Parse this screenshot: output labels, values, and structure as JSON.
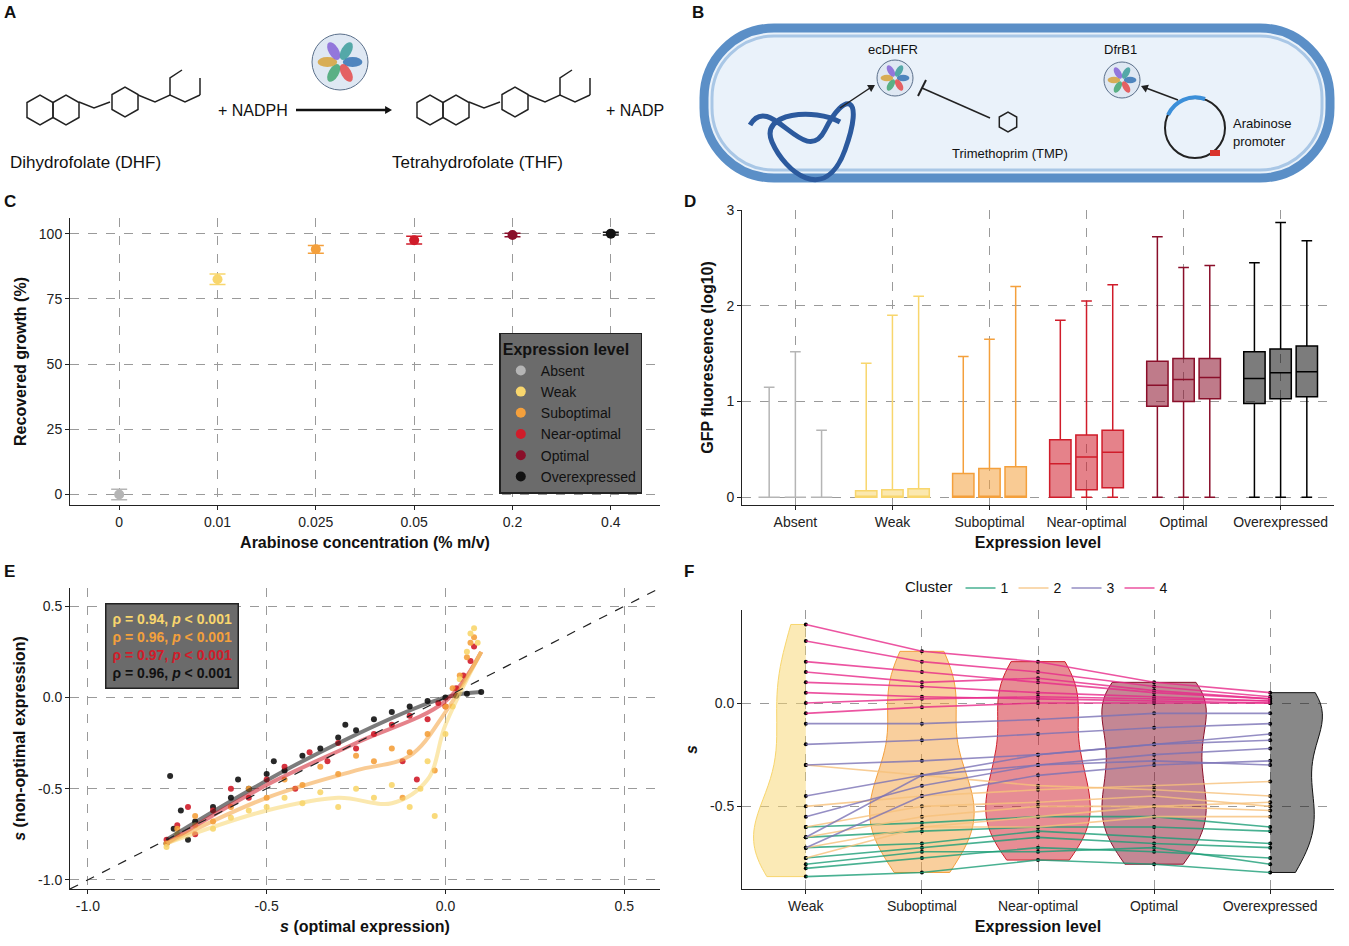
{
  "diagrams": [
    {
      "panel": "A",
      "type": "reaction",
      "substrate": "Dihydrofolate (DHF)",
      "cofactor": "+ NADPH",
      "product": "Tetrahydrofolate (THF)",
      "cofactor_product": "+ NADP"
    },
    {
      "panel": "B",
      "type": "cell",
      "host_enzyme": "ecDHFR",
      "enzyme": "DfrB1",
      "drug": "Trimethoprim (TMP)",
      "promoter": "Arabinose promoter"
    }
  ],
  "chart_data": [
    {
      "panel": "C",
      "type": "scatter",
      "x_label": "Arabinose concentration (% m/v)",
      "y_label": "Recovered growth (%)",
      "categories": [
        "0",
        "0.01",
        "0.025",
        "0.05",
        "0.2",
        "0.4"
      ],
      "ylim": [
        -4,
        106
      ],
      "yticks": [
        0,
        25,
        50,
        75,
        100
      ],
      "grid": true,
      "legend": "bottom right",
      "legend_title": "Expression level",
      "series": [
        {
          "name": "Absent",
          "color": "#b5b5b5",
          "values": [
            0,
            null,
            null,
            null,
            null,
            null
          ],
          "errors": [
            2,
            null,
            null,
            null,
            null,
            null
          ]
        },
        {
          "name": "Weak",
          "color": "#f8d66d",
          "values": [
            null,
            82.5,
            null,
            null,
            null,
            null
          ],
          "errors": [
            null,
            2,
            null,
            null,
            null,
            null
          ]
        },
        {
          "name": "Suboptimal",
          "color": "#f4a03c",
          "values": [
            null,
            null,
            94,
            null,
            null,
            null
          ],
          "errors": [
            null,
            null,
            1.5,
            null,
            null,
            null
          ]
        },
        {
          "name": "Near-optimal",
          "color": "#d01c2a",
          "values": [
            null,
            null,
            null,
            97.5,
            null,
            null
          ],
          "errors": [
            null,
            null,
            null,
            1.5,
            null,
            null
          ]
        },
        {
          "name": "Optimal",
          "color": "#8a0f2a",
          "values": [
            null,
            null,
            null,
            null,
            99.5,
            null
          ],
          "errors": [
            null,
            null,
            null,
            null,
            0.7,
            null
          ]
        },
        {
          "name": "Overexpressed",
          "color": "#111111",
          "values": [
            null,
            null,
            null,
            null,
            null,
            100
          ],
          "errors": [
            null,
            null,
            null,
            null,
            null,
            0.5
          ]
        }
      ]
    },
    {
      "panel": "D",
      "type": "box",
      "x_label": "Expression level",
      "y_label": "GFP fluorescence (log10)",
      "categories": [
        "Absent",
        "Weak",
        "Suboptimal",
        "Near-optimal",
        "Optimal",
        "Overexpressed"
      ],
      "ylim": [
        -0.08,
        3
      ],
      "yticks": [
        0,
        1,
        2,
        3
      ],
      "grid": true,
      "series": [
        {
          "name": "Absent",
          "color": "#b5b5b5",
          "replicates": [
            {
              "min": 0,
              "q1": 0,
              "median": 0,
              "q3": 0,
              "max": 1.15
            },
            {
              "min": 0,
              "q1": 0,
              "median": 0,
              "q3": 0,
              "max": 1.52
            },
            {
              "min": 0,
              "q1": 0,
              "median": 0,
              "q3": 0,
              "max": 0.7
            }
          ]
        },
        {
          "name": "Weak",
          "color": "#f8d66d",
          "replicates": [
            {
              "min": 0,
              "q1": 0,
              "median": 0,
              "q3": 0.07,
              "max": 1.4
            },
            {
              "min": 0,
              "q1": 0,
              "median": 0,
              "q3": 0.08,
              "max": 1.9
            },
            {
              "min": 0,
              "q1": 0,
              "median": 0,
              "q3": 0.09,
              "max": 2.1
            }
          ]
        },
        {
          "name": "Suboptimal",
          "color": "#f4a03c",
          "replicates": [
            {
              "min": 0,
              "q1": 0,
              "median": 0,
              "q3": 0.25,
              "max": 1.47
            },
            {
              "min": 0,
              "q1": 0,
              "median": 0,
              "q3": 0.3,
              "max": 1.65
            },
            {
              "min": 0,
              "q1": 0,
              "median": 0,
              "q3": 0.32,
              "max": 2.2
            }
          ]
        },
        {
          "name": "Near-optimal",
          "color": "#d01c2a",
          "replicates": [
            {
              "min": 0,
              "q1": 0,
              "median": 0.35,
              "q3": 0.6,
              "max": 1.85
            },
            {
              "min": 0,
              "q1": 0.08,
              "median": 0.42,
              "q3": 0.65,
              "max": 2.05
            },
            {
              "min": 0,
              "q1": 0.1,
              "median": 0.47,
              "q3": 0.7,
              "max": 2.22
            }
          ]
        },
        {
          "name": "Optimal",
          "color": "#8a0f2a",
          "replicates": [
            {
              "min": 0,
              "q1": 0.95,
              "median": 1.17,
              "q3": 1.42,
              "max": 2.72
            },
            {
              "min": 0,
              "q1": 1.0,
              "median": 1.23,
              "q3": 1.45,
              "max": 2.4
            },
            {
              "min": 0,
              "q1": 1.03,
              "median": 1.25,
              "q3": 1.45,
              "max": 2.42
            }
          ]
        },
        {
          "name": "Overexpressed",
          "color": "#111111",
          "replicates": [
            {
              "min": 0,
              "q1": 0.98,
              "median": 1.24,
              "q3": 1.52,
              "max": 2.45
            },
            {
              "min": 0,
              "q1": 1.03,
              "median": 1.3,
              "q3": 1.55,
              "max": 2.87
            },
            {
              "min": 0,
              "q1": 1.05,
              "median": 1.31,
              "q3": 1.58,
              "max": 2.68
            }
          ]
        }
      ]
    },
    {
      "panel": "E",
      "type": "scatter",
      "x_label": "s (optimal expression)",
      "y_label": "s (non-optimal expression)",
      "xlim": [
        -1.05,
        0.6
      ],
      "ylim": [
        -1.05,
        0.6
      ],
      "xticks": [
        {
          "value": -1,
          "label": "-1.0"
        },
        {
          "value": -0.5,
          "label": "-0.5"
        },
        {
          "value": 0,
          "label": "0.0"
        },
        {
          "value": 0.5,
          "label": "0.5"
        }
      ],
      "yticks": [
        {
          "value": -1,
          "label": "-1.0"
        },
        {
          "value": -0.5,
          "label": "-0.5"
        },
        {
          "value": 0,
          "label": "0.0"
        },
        {
          "value": 0.5,
          "label": "0.5"
        }
      ],
      "grid": true,
      "series": [
        {
          "color": "#f8d66d",
          "annotation": "ρ = 0.94, p < 0.001",
          "x": [
            -0.78,
            -0.75,
            -0.7,
            -0.65,
            -0.6,
            -0.55,
            -0.5,
            -0.45,
            -0.4,
            -0.35,
            -0.3,
            -0.25,
            -0.2,
            -0.15,
            -0.1,
            -0.07,
            -0.05,
            -0.03,
            0,
            0.02,
            0.04,
            0.06,
            0.07,
            0.08,
            0.09
          ],
          "y": [
            -0.82,
            -0.75,
            -0.7,
            -0.72,
            -0.66,
            -0.62,
            -0.6,
            -0.55,
            -0.58,
            -0.52,
            -0.6,
            -0.5,
            -0.55,
            -0.48,
            -0.6,
            -0.5,
            -0.35,
            -0.65,
            -0.2,
            -0.05,
            0.1,
            0.25,
            0.35,
            0.38,
            0.3
          ],
          "trend_x": [
            -0.78,
            -0.5,
            -0.3,
            -0.15,
            -0.05,
            0,
            0.1
          ],
          "trend_y": [
            -0.8,
            -0.62,
            -0.55,
            -0.58,
            -0.45,
            -0.15,
            0.25
          ]
        },
        {
          "color": "#f4a03c",
          "annotation": "ρ = 0.96, p < 0.001",
          "x": [
            -0.78,
            -0.75,
            -0.7,
            -0.65,
            -0.6,
            -0.55,
            -0.5,
            -0.45,
            -0.4,
            -0.35,
            -0.3,
            -0.25,
            -0.2,
            -0.15,
            -0.1,
            -0.05,
            -0.03,
            0,
            0.02,
            0.04,
            0.06,
            0.07,
            0.08,
            -0.12
          ],
          "y": [
            -0.8,
            -0.72,
            -0.65,
            -0.68,
            -0.6,
            -0.5,
            -0.55,
            -0.45,
            -0.48,
            -0.38,
            -0.42,
            -0.32,
            -0.35,
            -0.28,
            -0.3,
            -0.2,
            -0.4,
            -0.05,
            0.05,
            0.12,
            0.22,
            0.3,
            0.33,
            -0.55
          ],
          "trend_x": [
            -0.78,
            -0.5,
            -0.25,
            -0.1,
            0,
            0.1
          ],
          "trend_y": [
            -0.8,
            -0.55,
            -0.4,
            -0.32,
            -0.08,
            0.25
          ]
        },
        {
          "color": "#d01c2a",
          "annotation": "ρ = 0.97, p < 0.001",
          "x": [
            -0.78,
            -0.75,
            -0.72,
            -0.7,
            -0.65,
            -0.6,
            -0.55,
            -0.5,
            -0.45,
            -0.42,
            -0.38,
            -0.33,
            -0.3,
            -0.25,
            -0.2,
            -0.15,
            -0.12,
            -0.1,
            -0.05,
            -0.02,
            0,
            0.03,
            0.05,
            0.07,
            0.08,
            -0.08
          ],
          "y": [
            -0.78,
            -0.7,
            -0.6,
            -0.75,
            -0.62,
            -0.5,
            -0.55,
            -0.45,
            -0.38,
            -0.5,
            -0.3,
            -0.35,
            -0.25,
            -0.28,
            -0.2,
            -0.15,
            -0.35,
            -0.1,
            -0.12,
            -0.03,
            -0.05,
            0.05,
            0.12,
            0.2,
            0.28,
            -0.45
          ],
          "trend_x": [
            -0.78,
            -0.5,
            -0.25,
            0,
            0.1
          ],
          "trend_y": [
            -0.8,
            -0.48,
            -0.25,
            -0.02,
            0.25
          ]
        },
        {
          "color": "#111111",
          "annotation": "ρ = 0.96, p < 0.001",
          "x": [
            -0.78,
            -0.76,
            -0.74,
            -0.72,
            -0.7,
            -0.65,
            -0.6,
            -0.58,
            -0.55,
            -0.5,
            -0.48,
            -0.45,
            -0.4,
            -0.35,
            -0.3,
            -0.28,
            -0.25,
            -0.2,
            -0.15,
            -0.1,
            -0.05,
            0,
            0.03,
            0.06,
            0.1,
            -0.77
          ],
          "y": [
            -0.8,
            -0.72,
            -0.62,
            -0.78,
            -0.68,
            -0.6,
            -0.55,
            -0.45,
            -0.5,
            -0.42,
            -0.35,
            -0.4,
            -0.32,
            -0.28,
            -0.22,
            -0.15,
            -0.18,
            -0.12,
            -0.08,
            -0.05,
            -0.02,
            0,
            0.01,
            0.02,
            0.03,
            -0.43
          ],
          "trend_x": [
            -0.78,
            -0.4,
            0,
            0.1
          ],
          "trend_y": [
            -0.78,
            -0.35,
            0,
            0.03
          ]
        }
      ]
    },
    {
      "panel": "F",
      "type": "line",
      "x_label": "Expression level",
      "y_label": "s",
      "categories": [
        "Weak",
        "Suboptimal",
        "Near-optimal",
        "Optimal",
        "Overexpressed"
      ],
      "colors": [
        "#f8d66d",
        "#f4a03c",
        "#d01c2a",
        "#8a0f2a",
        "#111111"
      ],
      "ylim": [
        -0.9,
        0.45
      ],
      "yticks": [
        {
          "value": -0.5,
          "label": "-0.5"
        },
        {
          "value": 0,
          "label": "0.0"
        }
      ],
      "grid": true,
      "legend": "top",
      "legend_title": "Cluster",
      "series": [
        {
          "name": "1",
          "color": "#1b9e77",
          "lines": [
            [
              -0.84,
              -0.82,
              -0.76,
              -0.78,
              -0.82
            ],
            [
              -0.8,
              -0.75,
              -0.7,
              -0.72,
              -0.75
            ],
            [
              -0.75,
              -0.7,
              -0.65,
              -0.68,
              -0.7
            ],
            [
              -0.7,
              -0.68,
              -0.62,
              -0.65,
              -0.68
            ],
            [
              -0.65,
              -0.62,
              -0.6,
              -0.6,
              -0.62
            ],
            [
              -0.78,
              -0.72,
              -0.72,
              -0.7,
              -0.78
            ],
            [
              -0.6,
              -0.58,
              -0.55,
              -0.55,
              -0.6
            ]
          ]
        },
        {
          "name": "2",
          "color": "#f6c07a",
          "lines": [
            [
              -0.3,
              -0.35,
              -0.4,
              -0.42,
              -0.45
            ],
            [
              -0.5,
              -0.45,
              -0.42,
              -0.4,
              -0.38
            ],
            [
              -0.6,
              -0.5,
              -0.48,
              -0.45,
              -0.5
            ],
            [
              -0.65,
              -0.55,
              -0.5,
              -0.5,
              -0.52
            ],
            [
              -0.7,
              -0.6,
              -0.55,
              -0.5,
              -0.48
            ],
            [
              -0.75,
              -0.6,
              -0.6,
              -0.55,
              -0.55
            ]
          ]
        },
        {
          "name": "3",
          "color": "#7a72b5",
          "lines": [
            [
              -0.1,
              -0.1,
              -0.08,
              -0.05,
              -0.05
            ],
            [
              -0.2,
              -0.18,
              -0.15,
              -0.12,
              -0.1
            ],
            [
              -0.3,
              -0.28,
              -0.25,
              -0.2,
              -0.18
            ],
            [
              -0.45,
              -0.35,
              -0.3,
              -0.25,
              -0.22
            ],
            [
              -0.55,
              -0.4,
              -0.3,
              -0.28,
              -0.3
            ],
            [
              -0.65,
              -0.35,
              -0.25,
              -0.2,
              -0.15
            ],
            [
              -0.7,
              -0.45,
              -0.35,
              -0.3,
              -0.28
            ]
          ]
        },
        {
          "name": "4",
          "color": "#e7298a",
          "lines": [
            [
              0.38,
              0.25,
              0.2,
              0.1,
              0.05
            ],
            [
              0.3,
              0.2,
              0.15,
              0.08,
              0.03
            ],
            [
              0.2,
              0.15,
              0.1,
              0.05,
              0.02
            ],
            [
              0.1,
              0.08,
              0.05,
              0.03,
              0.01
            ],
            [
              0.05,
              0.03,
              0.02,
              0.01,
              0
            ],
            [
              0,
              0.02,
              0.03,
              0.02,
              0.01
            ],
            [
              -0.05,
              -0.02,
              0,
              0,
              0
            ],
            [
              0.15,
              0.1,
              0.12,
              0.06,
              0.02
            ]
          ]
        }
      ]
    }
  ]
}
